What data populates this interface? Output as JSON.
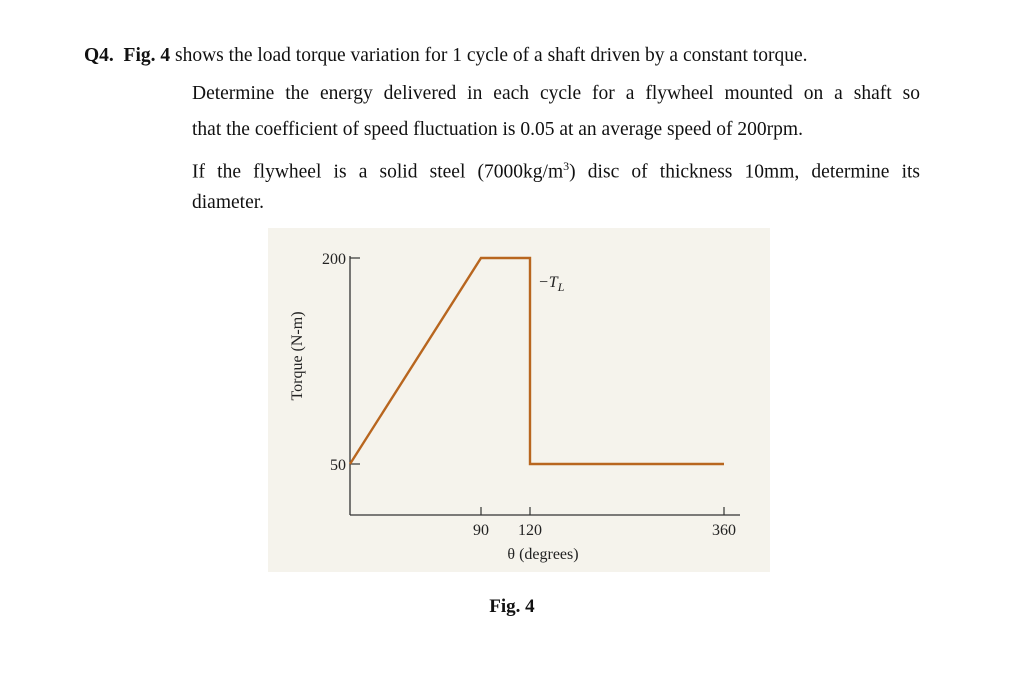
{
  "question": {
    "number": "Q4.",
    "fig_ref": "Fig. 4",
    "line1_rest": " shows the load torque variation for 1 cycle of a shaft driven by a constant torque.",
    "line2": "Determine the energy delivered in each cycle for a flywheel mounted on a shaft so",
    "line3": "that the coefficient of speed fluctuation is 0.05 at an average speed of 200rpm.",
    "line4_pre": "If the flywheel is a solid steel (7000kg/m",
    "line4_sup": "3",
    "line4_post": ") disc of thickness 10mm, determine its",
    "line5": "diameter."
  },
  "figure": {
    "caption": "Fig. 4",
    "line_color": "#b8661f",
    "background": "#f5f3ec"
  },
  "chart_data": {
    "type": "line",
    "xlabel": "θ (degrees)",
    "ylabel": "Torque (N-m)",
    "series_label": "−T",
    "series_label_sub": "L",
    "x_ticks": [
      "90",
      "120",
      "360"
    ],
    "y_ticks": [
      "200",
      "50"
    ],
    "points": [
      [
        0,
        50
      ],
      [
        90,
        200
      ],
      [
        120,
        200
      ],
      [
        120,
        50
      ],
      [
        360,
        50
      ]
    ],
    "grid": false
  }
}
